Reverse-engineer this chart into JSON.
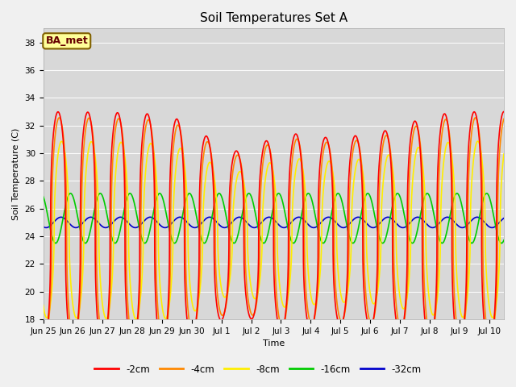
{
  "title": "Soil Temperatures Set A",
  "xlabel": "Time",
  "ylabel": "Soil Temperature (C)",
  "ylim": [
    18,
    39
  ],
  "yticks": [
    18,
    20,
    22,
    24,
    26,
    28,
    30,
    32,
    34,
    36,
    38
  ],
  "fig_bg": "#f0f0f0",
  "ax_bg": "#d8d8d8",
  "annotation_text": "BA_met",
  "annotation_bg": "#ffff99",
  "annotation_border": "#806000",
  "series": [
    {
      "label": "-2cm",
      "color": "#ff0000"
    },
    {
      "label": "-4cm",
      "color": "#ff8800"
    },
    {
      "label": "-8cm",
      "color": "#ffee00"
    },
    {
      "label": "-16cm",
      "color": "#00cc00"
    },
    {
      "label": "-32cm",
      "color": "#0000cc"
    }
  ],
  "xtick_labels": [
    "Jun 25",
    "Jun 26",
    "Jun 27",
    "Jun 28",
    "Jun 29",
    "Jun 30",
    "Jul 1",
    "Jul 2",
    "Jul 3",
    "Jul 4",
    "Jul 5",
    "Jul 6",
    "Jul 7",
    "Jul 8",
    "Jul 9",
    "Jul 10"
  ],
  "linewidth": 1.2,
  "grid_color": "#ffffff",
  "title_fontsize": 11,
  "label_fontsize": 8,
  "tick_fontsize": 7.5
}
